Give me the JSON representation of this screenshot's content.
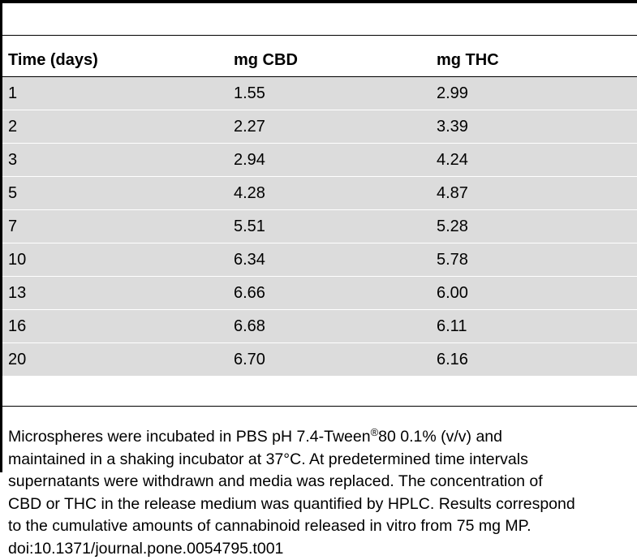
{
  "table": {
    "headers": [
      "Time (days)",
      "mg CBD",
      "mg THC"
    ],
    "rows": [
      [
        "1",
        "1.55",
        "2.99"
      ],
      [
        "2",
        "2.27",
        "3.39"
      ],
      [
        "3",
        "2.94",
        "4.24"
      ],
      [
        "5",
        "4.28",
        "4.87"
      ],
      [
        "7",
        "5.51",
        "5.28"
      ],
      [
        "10",
        "6.34",
        "5.78"
      ],
      [
        "13",
        "6.66",
        "6.00"
      ],
      [
        "16",
        "6.68",
        "6.11"
      ],
      [
        "20",
        "6.70",
        "6.16"
      ]
    ]
  },
  "footnote": {
    "line1_pre": "Microspheres were incubated in PBS pH 7.4-Tween",
    "line1_sup": "®",
    "line1_post": "80 0.1% (v/v) and",
    "line2": "maintained in a shaking incubator at 37°C. At predetermined time intervals",
    "line3": "supernatants were withdrawn and media was replaced. The concentration of",
    "line4": "CBD or THC in the release medium was quantified by HPLC. Results correspond",
    "line5": "to the cumulative amounts of cannabinoid released in vitro from 75 mg MP.",
    "doi": "doi:10.1371/journal.pone.0054795.t001"
  },
  "colors": {
    "row_shading": "#dcdcdc",
    "rule": "#000000"
  }
}
